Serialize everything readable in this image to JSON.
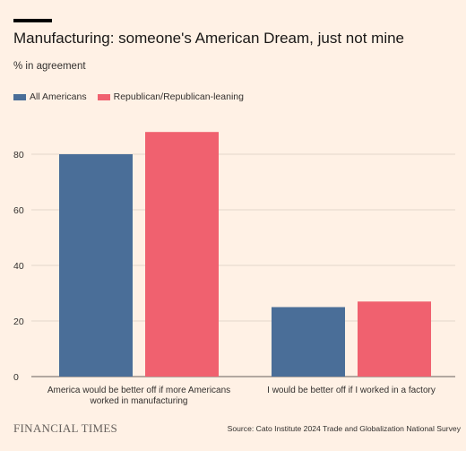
{
  "title": "Manufacturing: someone's American Dream, just not mine",
  "subtitle": "% in agreement",
  "footer": {
    "brand": "FINANCIAL TIMES",
    "source": "Source: Cato Institute 2024 Trade and Globalization National Survey"
  },
  "chart_data": {
    "type": "bar",
    "categories": [
      [
        "America would be better off if more Americans",
        "worked in manufacturing"
      ],
      [
        "I would be better off if I worked in a factory"
      ]
    ],
    "series": [
      {
        "name": "All Americans",
        "color": "#4a6e98",
        "values": [
          80,
          25
        ]
      },
      {
        "name": "Republican/Republican-leaning",
        "color": "#f0616f",
        "values": [
          88,
          27
        ]
      }
    ],
    "ylim": [
      0,
      90
    ],
    "yticks": [
      0,
      20,
      40,
      60,
      80
    ],
    "grid": true,
    "legend_position": "top-left"
  }
}
